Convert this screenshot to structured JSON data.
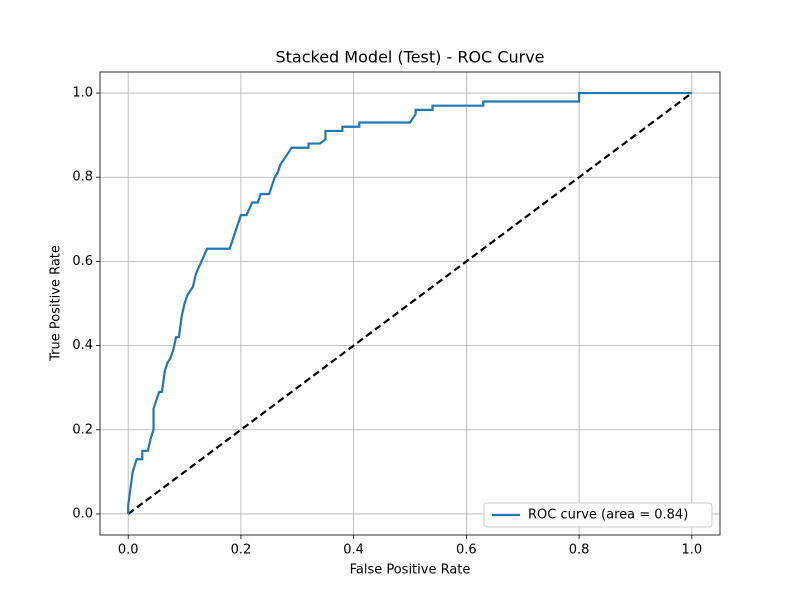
{
  "chart_data": {
    "type": "line",
    "title": "Stacked Model (Test) - ROC Curve",
    "xlabel": "False Positive Rate",
    "ylabel": "True Positive Rate",
    "xlim": [
      -0.05,
      1.05
    ],
    "ylim": [
      -0.05,
      1.05
    ],
    "xticks": [
      {
        "value": 0,
        "label": "0.0"
      },
      0.2,
      0.4,
      0.6,
      0.8,
      {
        "value": 1,
        "label": "1.0"
      }
    ],
    "yticks": [
      {
        "value": 0,
        "label": "0.0"
      },
      0.2,
      0.4,
      0.6,
      0.8,
      {
        "value": 1,
        "label": "1.0"
      }
    ],
    "grid": true,
    "legend": "lower right",
    "series": [
      {
        "name": "ROC curve (area = 0.84)",
        "color": "#1f77b4",
        "x": [
          0,
          0,
          0.003,
          0.008,
          0.015,
          0.025,
          0.025,
          0.035,
          0.04,
          0.045,
          0.045,
          0.05,
          0.055,
          0.06,
          0.065,
          0.07,
          0.075,
          0.08,
          0.085,
          0.09,
          0.095,
          0.1,
          0.105,
          0.11,
          0.115,
          0.12,
          0.13,
          0.14,
          0.18,
          0.19,
          0.2,
          0.21,
          0.22,
          0.23,
          0.235,
          0.25,
          0.26,
          0.265,
          0.27,
          0.28,
          0.29,
          0.32,
          0.32,
          0.34,
          0.35,
          0.35,
          0.38,
          0.38,
          0.41,
          0.41,
          0.5,
          0.51,
          0.51,
          0.54,
          0.54,
          0.63,
          0.63,
          0.8,
          0.8,
          1
        ],
        "values": [
          0,
          0.02,
          0.05,
          0.1,
          0.13,
          0.13,
          0.15,
          0.15,
          0.18,
          0.2,
          0.25,
          0.27,
          0.29,
          0.29,
          0.34,
          0.36,
          0.37,
          0.39,
          0.42,
          0.42,
          0.47,
          0.5,
          0.52,
          0.53,
          0.54,
          0.57,
          0.6,
          0.63,
          0.63,
          0.67,
          0.71,
          0.71,
          0.74,
          0.74,
          0.76,
          0.76,
          0.8,
          0.81,
          0.83,
          0.85,
          0.87,
          0.87,
          0.88,
          0.88,
          0.89,
          0.91,
          0.91,
          0.92,
          0.92,
          0.93,
          0.93,
          0.95,
          0.96,
          0.96,
          0.97,
          0.97,
          0.98,
          0.98,
          1,
          1
        ]
      }
    ],
    "reference_line": {
      "x": [
        0,
        1
      ],
      "values": [
        0,
        1
      ],
      "color": "#000000"
    }
  }
}
